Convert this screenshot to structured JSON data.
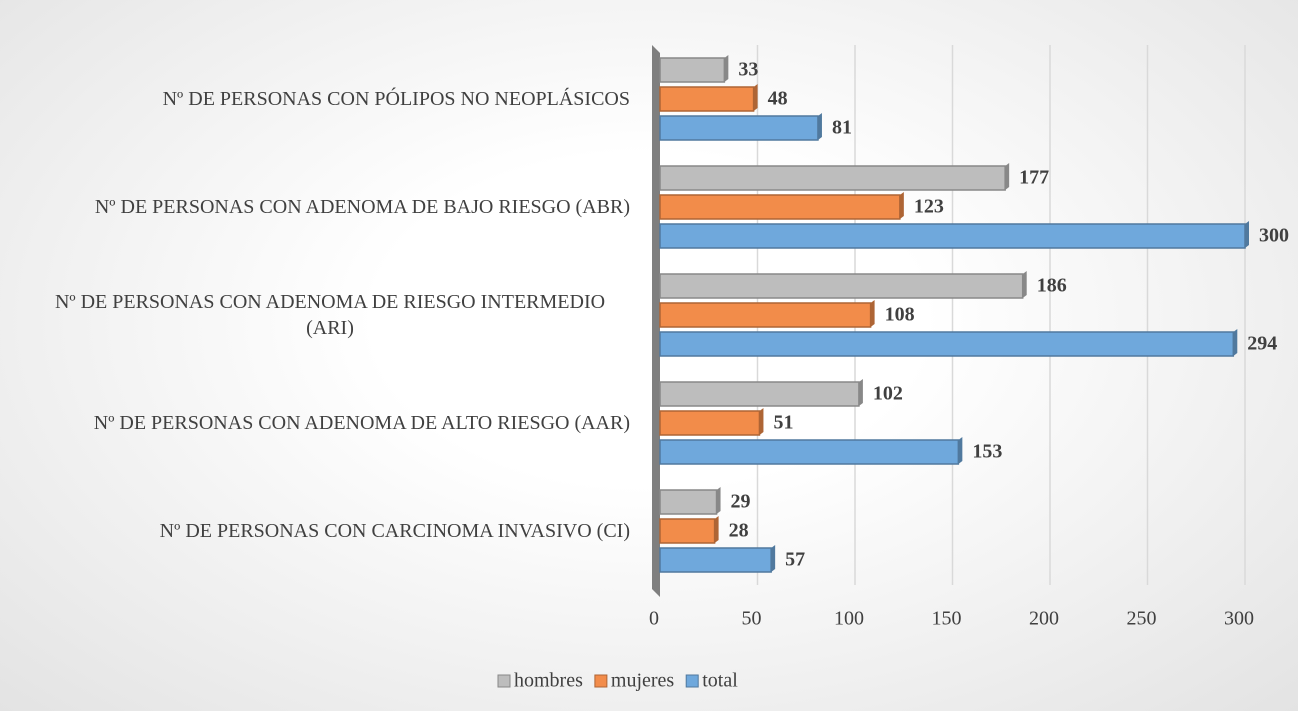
{
  "chart_data": {
    "type": "hbar",
    "categories": [
      "Nº DE PERSONAS CON PÓLIPOS NO NEOPLÁSICOS",
      "Nº DE PERSONAS CON ADENOMA DE BAJO RIESGO (ABR)",
      "Nº DE PERSONAS CON ADENOMA DE RIESGO INTERMEDIO (ARI)",
      "Nº DE PERSONAS CON ADENOMA DE ALTO RIESGO (AAR)",
      "Nº DE PERSONAS CON CARCINOMA INVASIVO (CI)"
    ],
    "series": [
      {
        "name": "hombres",
        "color": "#bdbdbd",
        "values": [
          33,
          177,
          186,
          102,
          29
        ]
      },
      {
        "name": "mujeres",
        "color": "#f28c4a",
        "values": [
          48,
          123,
          108,
          51,
          28
        ]
      },
      {
        "name": "total",
        "color": "#6fa8dc",
        "values": [
          81,
          300,
          294,
          153,
          57
        ]
      }
    ],
    "xlim": [
      0,
      300
    ],
    "xticks": [
      0,
      50,
      100,
      150,
      200,
      250,
      300
    ],
    "grid": true,
    "legend": "bottom"
  }
}
